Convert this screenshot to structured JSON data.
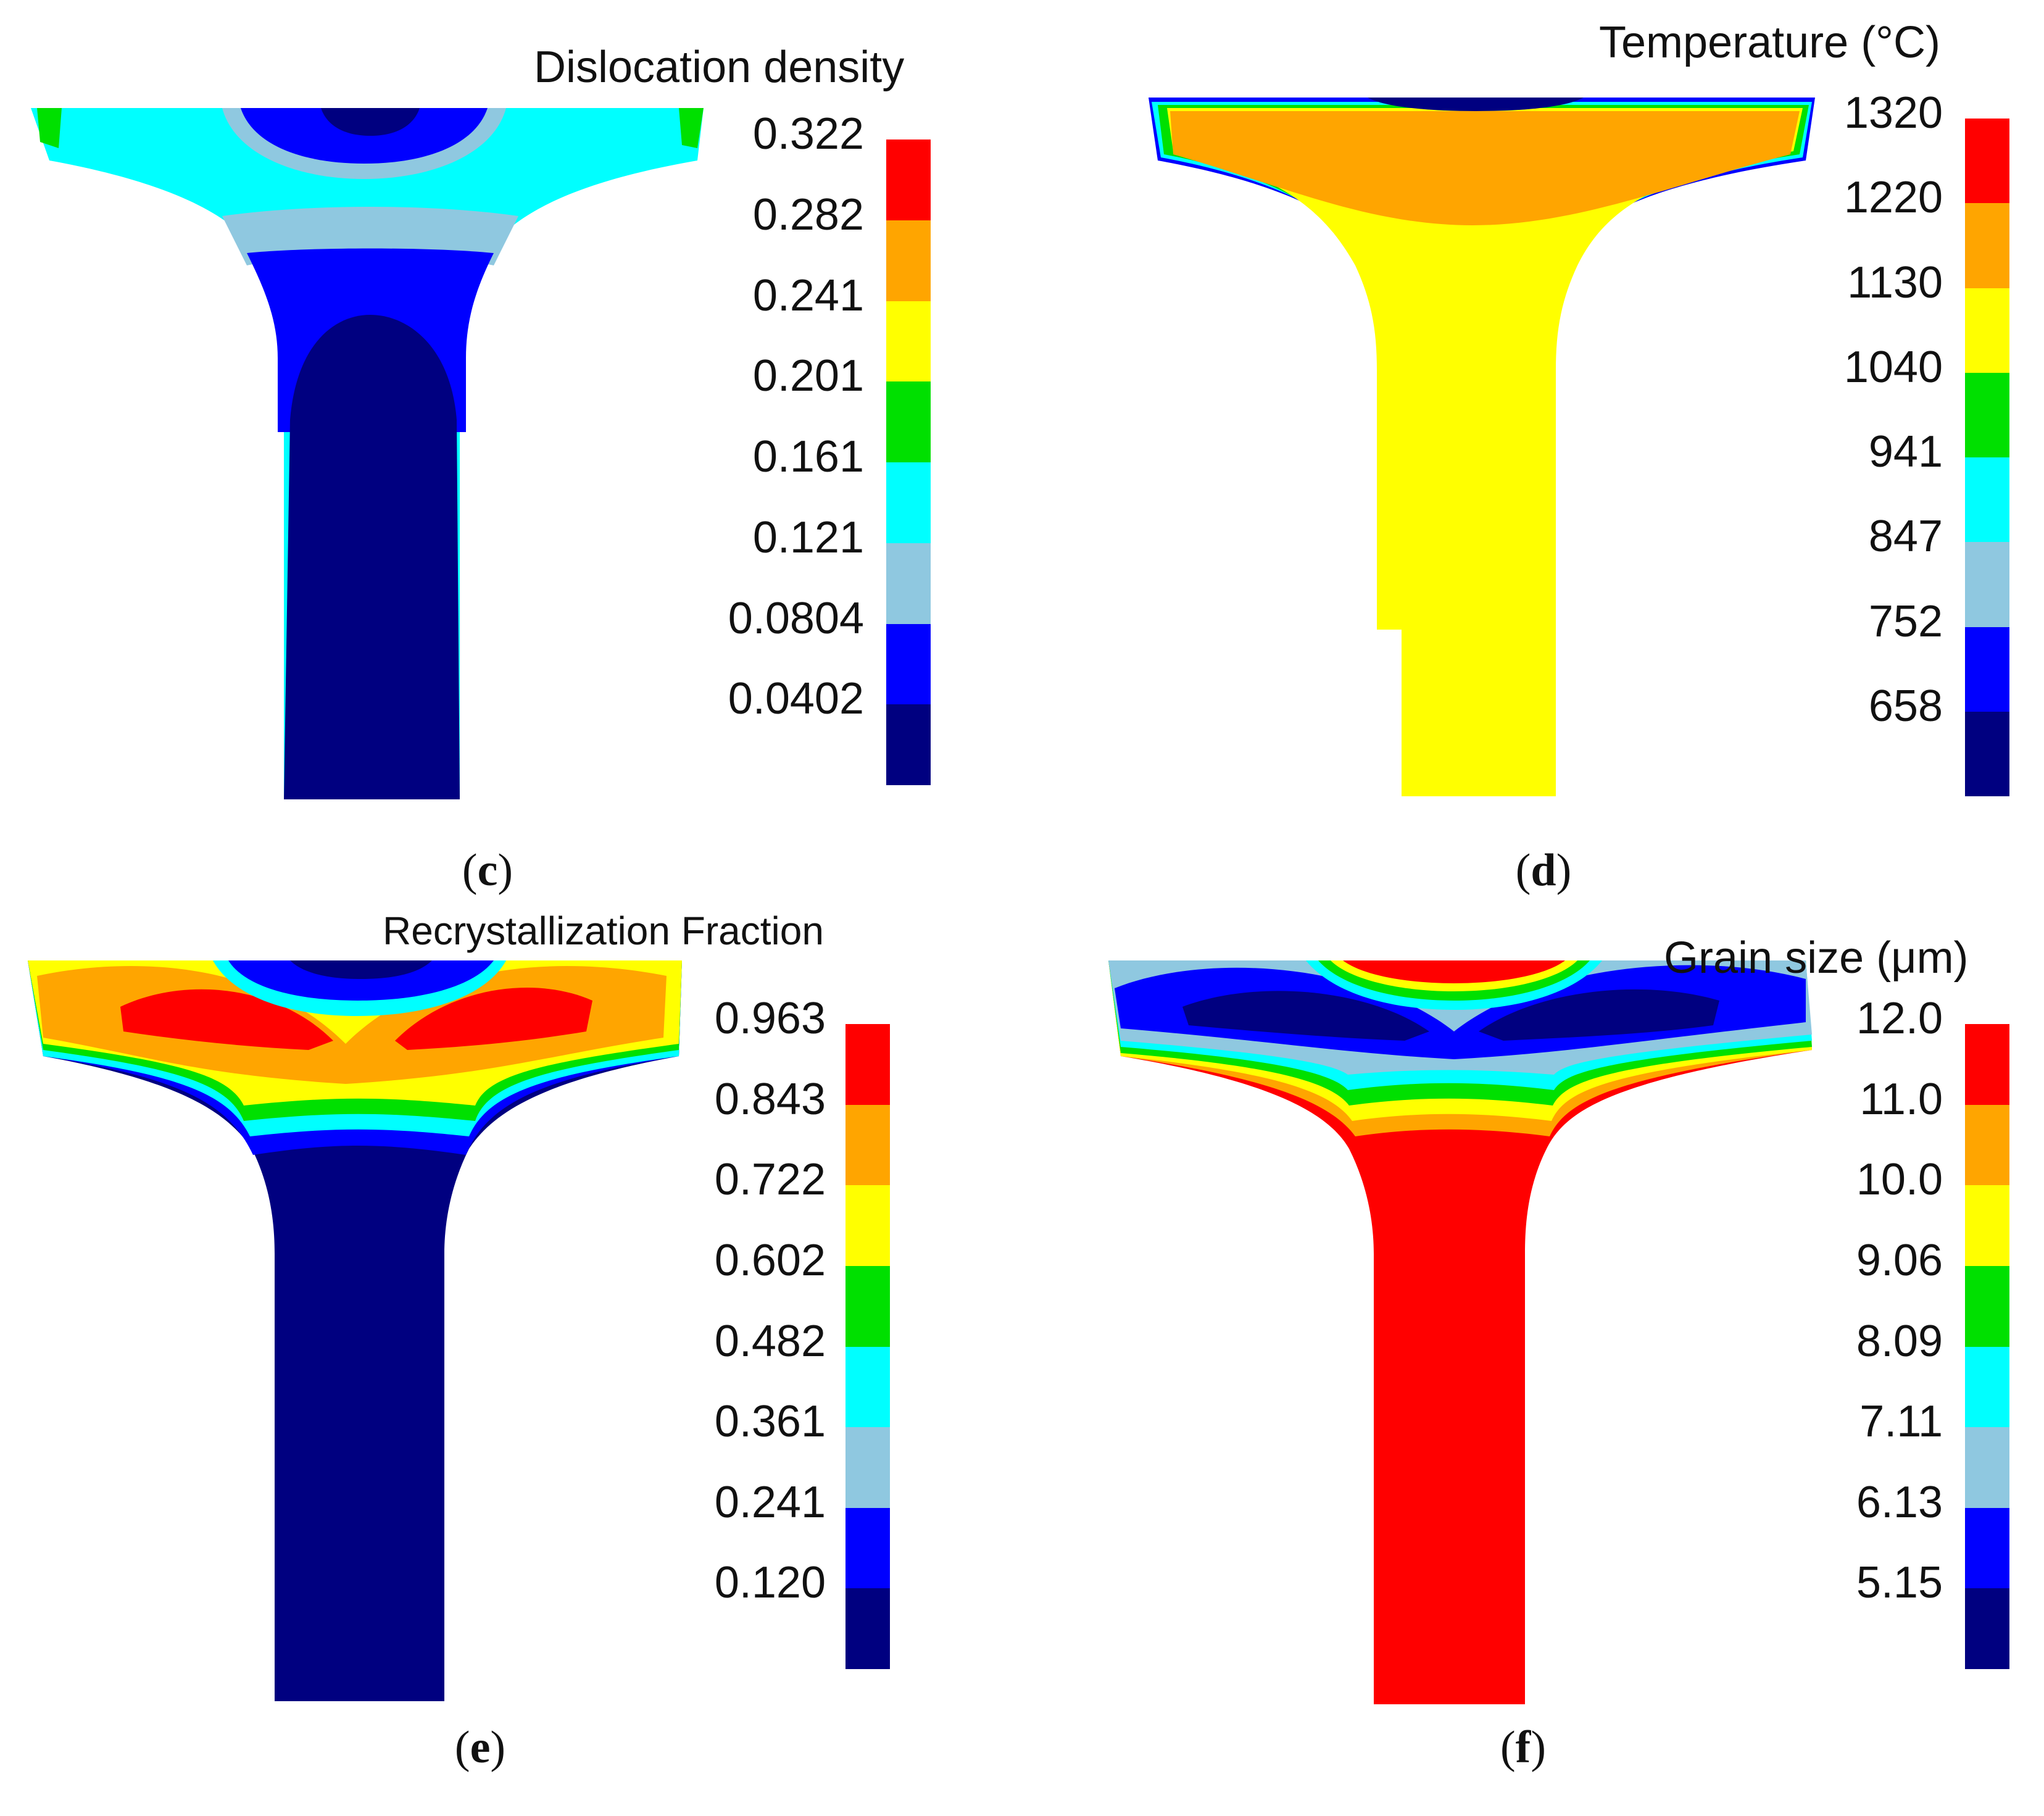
{
  "palette": [
    "#000080",
    "#0000ff",
    "#8fc8e0",
    "#00ffff",
    "#00e000",
    "#ffff00",
    "#ffa500",
    "#ff0000"
  ],
  "panels": [
    {
      "label": "c",
      "legend_title": "Dislocation density",
      "ticks": [
        "0.322",
        "0.282",
        "0.241",
        "0.201",
        "0.161",
        "0.121",
        "0.0804",
        "0.0402"
      ],
      "field": "dislocation"
    },
    {
      "label": "d",
      "legend_title": "Temperature (°C)",
      "ticks": [
        "1320",
        "1220",
        "1130",
        "1040",
        "941",
        "847",
        "752",
        "658"
      ],
      "field": "temperature"
    },
    {
      "label": "e",
      "legend_title": "Recrystallization Fraction",
      "ticks": [
        "0.963",
        "0.843",
        "0.722",
        "0.602",
        "0.482",
        "0.361",
        "0.241",
        "0.120"
      ],
      "field": "recrystallization"
    },
    {
      "label": "f",
      "legend_title": "Grain size (μm)",
      "ticks": [
        "12.0",
        "11.0",
        "10.0",
        "9.06",
        "8.09",
        "7.11",
        "6.13",
        "5.15"
      ],
      "field": "grain"
    }
  ]
}
